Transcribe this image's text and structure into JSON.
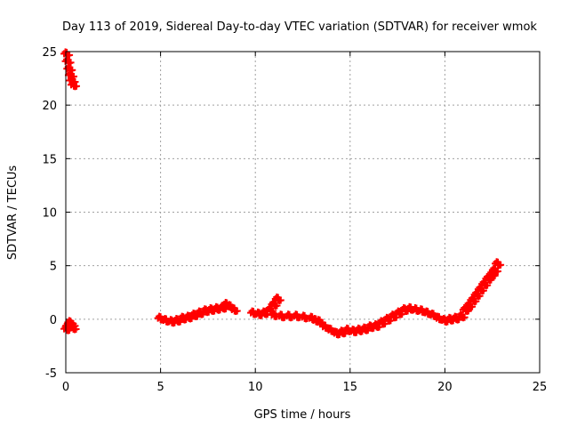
{
  "chart_data": {
    "type": "scatter",
    "title": "Day 113 of 2019, Sidereal Day-to-day VTEC variation (SDTVAR) for receiver wmok",
    "xlabel": "GPS time / hours",
    "ylabel": "SDTVAR / TECUs",
    "xlim": [
      0,
      25
    ],
    "ylim": [
      -5,
      25
    ],
    "xticks": [
      "0",
      "5",
      "10",
      "15",
      "20",
      "25"
    ],
    "yticks": [
      "-5",
      "0",
      "5",
      "10",
      "15",
      "20",
      "25"
    ],
    "grid": true,
    "marker": "+",
    "color": "#ff0000",
    "series": [
      {
        "name": "SDTVAR",
        "points": [
          [
            0.05,
            24.8
          ],
          [
            0.12,
            24.1
          ],
          [
            0.2,
            23.4
          ],
          [
            0.28,
            22.8
          ],
          [
            0.35,
            22.3
          ],
          [
            0.42,
            21.9
          ],
          [
            0.05,
            -0.9
          ],
          [
            0.15,
            -0.6
          ],
          [
            0.25,
            -0.3
          ],
          [
            0.35,
            -0.5
          ],
          [
            0.4,
            -0.8
          ],
          [
            5.0,
            0.1
          ],
          [
            5.3,
            -0.1
          ],
          [
            5.6,
            -0.2
          ],
          [
            5.9,
            -0.1
          ],
          [
            6.2,
            0.1
          ],
          [
            6.5,
            0.2
          ],
          [
            6.8,
            0.4
          ],
          [
            7.1,
            0.6
          ],
          [
            7.4,
            0.8
          ],
          [
            7.7,
            0.9
          ],
          [
            8.0,
            1.0
          ],
          [
            8.3,
            1.1
          ],
          [
            8.5,
            1.4
          ],
          [
            8.7,
            1.2
          ],
          [
            8.9,
            0.9
          ],
          [
            9.9,
            0.6
          ],
          [
            10.2,
            0.5
          ],
          [
            10.5,
            0.6
          ],
          [
            10.8,
            0.9
          ],
          [
            11.0,
            1.4
          ],
          [
            11.2,
            1.9
          ],
          [
            11.0,
            0.4
          ],
          [
            11.4,
            0.3
          ],
          [
            11.8,
            0.3
          ],
          [
            12.2,
            0.3
          ],
          [
            12.6,
            0.2
          ],
          [
            13.0,
            0.1
          ],
          [
            13.2,
            -0.1
          ],
          [
            13.4,
            -0.2
          ],
          [
            13.7,
            -0.7
          ],
          [
            14.0,
            -1.0
          ],
          [
            14.3,
            -1.3
          ],
          [
            14.6,
            -1.2
          ],
          [
            14.9,
            -1.0
          ],
          [
            15.2,
            -1.1
          ],
          [
            15.5,
            -1.0
          ],
          [
            15.8,
            -0.9
          ],
          [
            16.1,
            -0.7
          ],
          [
            16.4,
            -0.6
          ],
          [
            16.7,
            -0.3
          ],
          [
            17.0,
            0.0
          ],
          [
            17.3,
            0.3
          ],
          [
            17.6,
            0.6
          ],
          [
            17.9,
            0.9
          ],
          [
            18.2,
            1.0
          ],
          [
            18.5,
            0.9
          ],
          [
            18.8,
            0.8
          ],
          [
            19.1,
            0.6
          ],
          [
            19.4,
            0.4
          ],
          [
            19.7,
            0.1
          ],
          [
            20.0,
            -0.1
          ],
          [
            20.3,
            0.0
          ],
          [
            20.6,
            0.1
          ],
          [
            20.9,
            0.3
          ],
          [
            21.1,
            0.9
          ],
          [
            21.3,
            1.3
          ],
          [
            21.5,
            1.8
          ],
          [
            21.7,
            2.3
          ],
          [
            21.9,
            2.8
          ],
          [
            22.1,
            3.3
          ],
          [
            22.3,
            3.8
          ],
          [
            22.5,
            4.2
          ],
          [
            22.65,
            4.6
          ],
          [
            22.8,
            5.2
          ]
        ]
      }
    ]
  }
}
